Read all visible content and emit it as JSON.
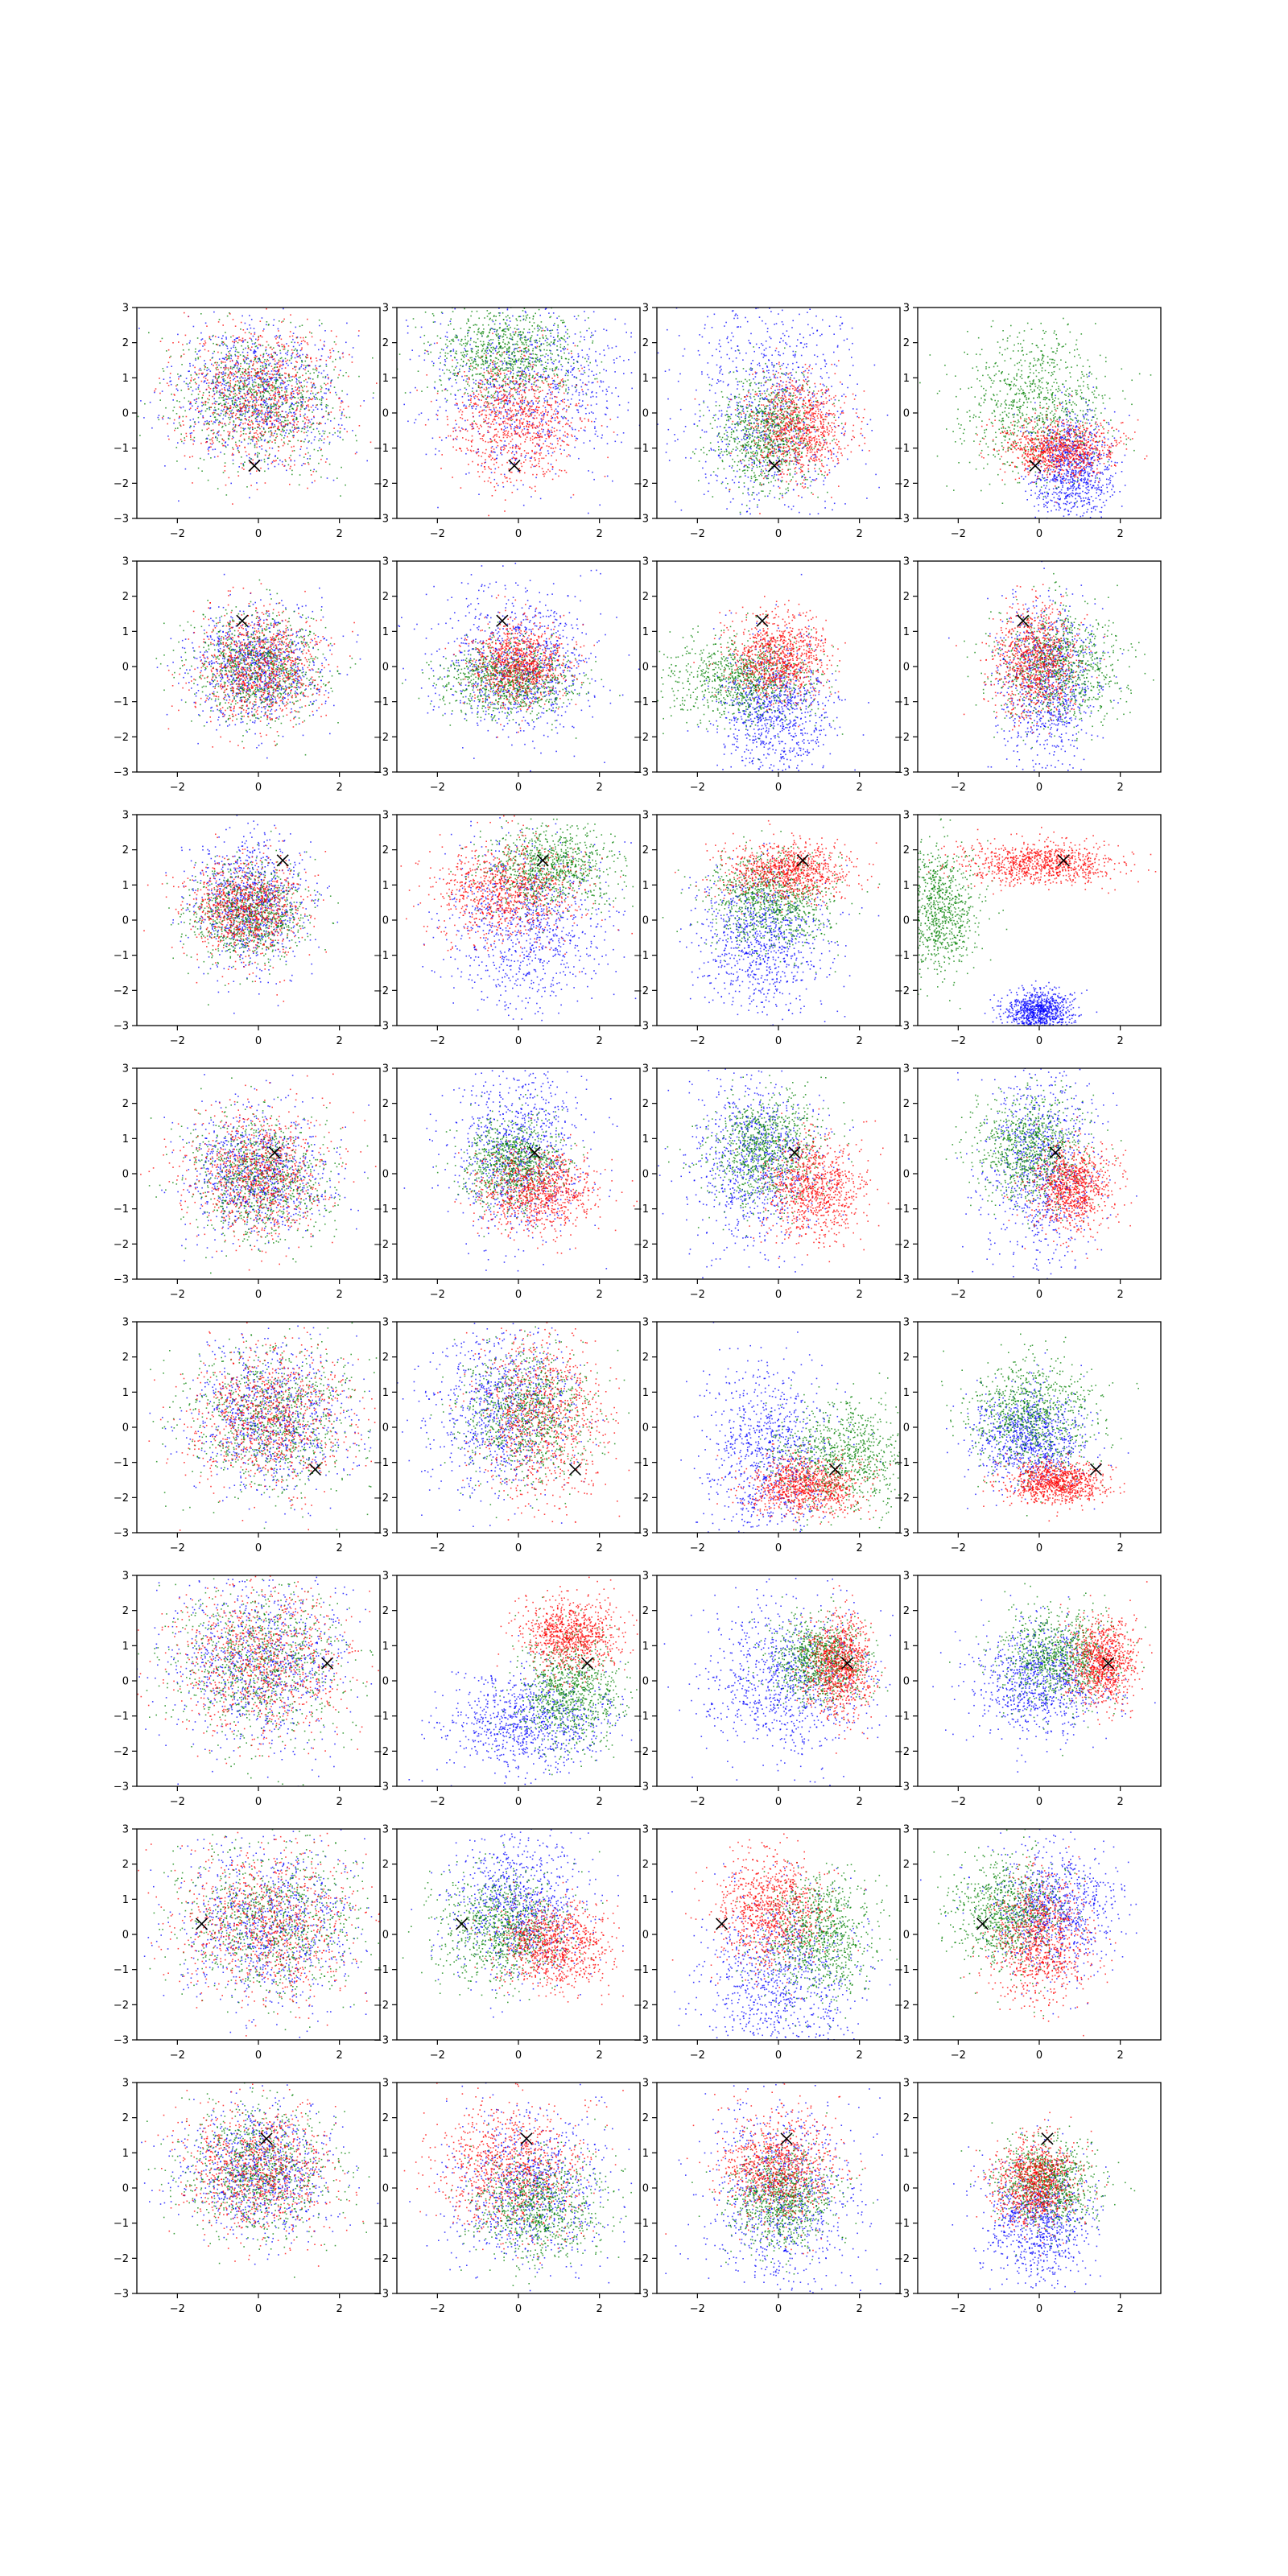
{
  "chart_data": {
    "type": "scatter",
    "layout": {
      "rows": 8,
      "cols": 4
    },
    "grid": false,
    "axes": {
      "xlim": [
        -3,
        3
      ],
      "ylim": [
        -3,
        3
      ],
      "xticks": [
        -2,
        0,
        2
      ],
      "yticks": [
        -3,
        -2,
        -1,
        0,
        1,
        2,
        3
      ],
      "xtick_labels": [
        "−2",
        "0",
        "2"
      ],
      "ytick_labels": [
        "−3",
        "−2",
        "−1",
        "0",
        "1",
        "2",
        "3"
      ]
    },
    "series_colors": [
      "#0000ff",
      "#008000",
      "#ff0000"
    ],
    "marker": {
      "symbol": "x",
      "color": "#000000"
    },
    "rows": [
      {
        "marker": [
          -0.1,
          -1.5
        ],
        "panels": [
          [
            {
              "cx": 0.0,
              "cy": 0.5,
              "sx": 1.0,
              "sy": 1.0
            },
            {
              "cx": 0.0,
              "cy": 0.5,
              "sx": 1.0,
              "sy": 1.0
            },
            {
              "cx": 0.0,
              "cy": 0.5,
              "sx": 1.0,
              "sy": 1.0
            }
          ],
          [
            {
              "cx": 0.3,
              "cy": 0.8,
              "sx": 1.3,
              "sy": 1.3
            },
            {
              "cx": -0.3,
              "cy": 1.7,
              "sx": 0.9,
              "sy": 0.7
            },
            {
              "cx": -0.1,
              "cy": -0.2,
              "sx": 0.8,
              "sy": 0.9
            }
          ],
          [
            {
              "cx": -0.3,
              "cy": 0.2,
              "sx": 1.1,
              "sy": 1.7
            },
            {
              "cx": -0.3,
              "cy": -0.6,
              "sx": 0.6,
              "sy": 0.8
            },
            {
              "cx": 0.5,
              "cy": -0.4,
              "sx": 0.6,
              "sy": 0.7
            }
          ],
          [
            {
              "cx": 0.8,
              "cy": -1.6,
              "sx": 0.5,
              "sy": 0.8
            },
            {
              "cx": -0.1,
              "cy": 0.2,
              "sx": 0.9,
              "sy": 1.0
            },
            {
              "cx": 0.5,
              "cy": -1.0,
              "sx": 0.7,
              "sy": 0.4
            }
          ]
        ]
      },
      {
        "marker": [
          -0.4,
          1.3
        ],
        "panels": [
          [
            {
              "cx": 0.0,
              "cy": 0.0,
              "sx": 0.8,
              "sy": 0.8
            },
            {
              "cx": 0.0,
              "cy": 0.0,
              "sx": 0.8,
              "sy": 0.8
            },
            {
              "cx": 0.0,
              "cy": 0.0,
              "sx": 0.8,
              "sy": 0.8
            }
          ],
          [
            {
              "cx": 0.0,
              "cy": 0.1,
              "sx": 1.0,
              "sy": 1.0
            },
            {
              "cx": -0.2,
              "cy": -0.4,
              "sx": 0.8,
              "sy": 0.5
            },
            {
              "cx": 0.0,
              "cy": 0.1,
              "sx": 0.6,
              "sy": 0.6
            }
          ],
          [
            {
              "cx": -0.1,
              "cy": -1.2,
              "sx": 0.7,
              "sy": 1.0
            },
            {
              "cx": -0.9,
              "cy": -0.4,
              "sx": 0.9,
              "sy": 0.6
            },
            {
              "cx": 0.0,
              "cy": 0.3,
              "sx": 0.6,
              "sy": 0.6
            }
          ],
          [
            {
              "cx": 0.2,
              "cy": -0.5,
              "sx": 0.6,
              "sy": 1.2
            },
            {
              "cx": 0.5,
              "cy": 0.0,
              "sx": 0.8,
              "sy": 0.8
            },
            {
              "cx": -0.1,
              "cy": 0.2,
              "sx": 0.5,
              "sy": 0.8
            }
          ]
        ]
      },
      {
        "marker": [
          0.6,
          1.7
        ],
        "panels": [
          [
            {
              "cx": -0.2,
              "cy": 0.5,
              "sx": 0.7,
              "sy": 0.9
            },
            {
              "cx": -0.3,
              "cy": 0.2,
              "sx": 0.7,
              "sy": 0.7
            },
            {
              "cx": -0.3,
              "cy": 0.3,
              "sx": 0.7,
              "sy": 0.7
            }
          ],
          [
            {
              "cx": 0.2,
              "cy": -0.2,
              "sx": 1.0,
              "sy": 1.2
            },
            {
              "cx": 0.8,
              "cy": 1.5,
              "sx": 0.8,
              "sy": 0.6
            },
            {
              "cx": -0.3,
              "cy": 0.8,
              "sx": 0.9,
              "sy": 0.7
            }
          ],
          [
            {
              "cx": -0.4,
              "cy": -0.6,
              "sx": 0.8,
              "sy": 1.0
            },
            {
              "cx": -0.2,
              "cy": 0.6,
              "sx": 0.8,
              "sy": 0.7
            },
            {
              "cx": 0.2,
              "cy": 1.4,
              "sx": 0.8,
              "sy": 0.4
            }
          ],
          [
            {
              "cx": 0.0,
              "cy": -2.6,
              "sx": 0.4,
              "sy": 0.3
            },
            {
              "cx": -2.5,
              "cy": 0.3,
              "sx": 0.5,
              "sy": 0.9
            },
            {
              "cx": 0.1,
              "cy": 1.6,
              "sx": 0.9,
              "sy": 0.3
            }
          ]
        ]
      },
      {
        "marker": [
          0.4,
          0.6
        ],
        "panels": [
          [
            {
              "cx": 0.0,
              "cy": 0.0,
              "sx": 0.9,
              "sy": 0.9
            },
            {
              "cx": 0.0,
              "cy": -0.1,
              "sx": 0.9,
              "sy": 0.9
            },
            {
              "cx": 0.0,
              "cy": 0.0,
              "sx": 0.9,
              "sy": 0.9
            }
          ],
          [
            {
              "cx": 0.0,
              "cy": 0.6,
              "sx": 0.8,
              "sy": 1.3
            },
            {
              "cx": -0.1,
              "cy": 0.3,
              "sx": 0.6,
              "sy": 0.6
            },
            {
              "cx": 0.5,
              "cy": -0.5,
              "sx": 0.7,
              "sy": 0.6
            }
          ],
          [
            {
              "cx": -0.5,
              "cy": 0.4,
              "sx": 0.8,
              "sy": 1.3
            },
            {
              "cx": -0.3,
              "cy": 0.7,
              "sx": 0.7,
              "sy": 0.8
            },
            {
              "cx": 0.9,
              "cy": -0.4,
              "sx": 0.6,
              "sy": 0.7
            }
          ],
          [
            {
              "cx": 0.0,
              "cy": 0.2,
              "sx": 0.7,
              "sy": 1.4
            },
            {
              "cx": -0.2,
              "cy": 0.7,
              "sx": 0.7,
              "sy": 0.8
            },
            {
              "cx": 0.8,
              "cy": -0.4,
              "sx": 0.5,
              "sy": 0.6
            }
          ]
        ]
      },
      {
        "marker": [
          1.4,
          -1.2
        ],
        "panels": [
          [
            {
              "cx": 0.3,
              "cy": 0.3,
              "sx": 1.0,
              "sy": 1.0
            },
            {
              "cx": 0.3,
              "cy": 0.3,
              "sx": 1.0,
              "sy": 1.0
            },
            {
              "cx": 0.3,
              "cy": 0.3,
              "sx": 1.0,
              "sy": 1.0
            }
          ],
          [
            {
              "cx": -0.4,
              "cy": 0.5,
              "sx": 0.9,
              "sy": 1.2
            },
            {
              "cx": 0.2,
              "cy": 0.3,
              "sx": 0.8,
              "sy": 0.9
            },
            {
              "cx": 0.6,
              "cy": 0.3,
              "sx": 0.8,
              "sy": 1.2
            }
          ],
          [
            {
              "cx": -0.2,
              "cy": -0.8,
              "sx": 0.8,
              "sy": 1.3
            },
            {
              "cx": 1.6,
              "cy": -0.8,
              "sx": 0.8,
              "sy": 0.8
            },
            {
              "cx": 0.6,
              "cy": -1.7,
              "sx": 0.7,
              "sy": 0.4
            }
          ],
          [
            {
              "cx": -0.2,
              "cy": -0.3,
              "sx": 0.7,
              "sy": 0.7
            },
            {
              "cx": -0.2,
              "cy": 0.3,
              "sx": 0.8,
              "sy": 0.8
            },
            {
              "cx": 0.4,
              "cy": -1.6,
              "sx": 0.6,
              "sy": 0.3
            }
          ]
        ]
      },
      {
        "marker": [
          1.7,
          0.5
        ],
        "panels": [
          [
            {
              "cx": 0.0,
              "cy": 0.5,
              "sx": 1.1,
              "sy": 1.1
            },
            {
              "cx": 0.0,
              "cy": 0.5,
              "sx": 1.1,
              "sy": 1.1
            },
            {
              "cx": 0.0,
              "cy": 0.5,
              "sx": 1.1,
              "sy": 1.1
            }
          ],
          [
            {
              "cx": 0.3,
              "cy": -1.2,
              "sx": 1.0,
              "sy": 0.7
            },
            {
              "cx": 1.3,
              "cy": -0.3,
              "sx": 0.6,
              "sy": 0.8
            },
            {
              "cx": 1.3,
              "cy": 1.3,
              "sx": 0.6,
              "sy": 0.5
            }
          ],
          [
            {
              "cx": 0.2,
              "cy": 0.0,
              "sx": 1.0,
              "sy": 1.1
            },
            {
              "cx": 1.0,
              "cy": 0.6,
              "sx": 0.6,
              "sy": 0.6
            },
            {
              "cx": 1.5,
              "cy": 0.4,
              "sx": 0.4,
              "sy": 0.7
            }
          ],
          [
            {
              "cx": 0.0,
              "cy": 0.0,
              "sx": 0.8,
              "sy": 0.8
            },
            {
              "cx": 0.5,
              "cy": 0.7,
              "sx": 0.7,
              "sy": 0.7
            },
            {
              "cx": 1.6,
              "cy": 0.5,
              "sx": 0.4,
              "sy": 0.6
            }
          ]
        ]
      },
      {
        "marker": [
          -1.4,
          0.3
        ],
        "panels": [
          [
            {
              "cx": 0.3,
              "cy": 0.3,
              "sx": 1.1,
              "sy": 1.1
            },
            {
              "cx": 0.3,
              "cy": 0.3,
              "sx": 1.1,
              "sy": 1.1
            },
            {
              "cx": 0.3,
              "cy": 0.3,
              "sx": 1.1,
              "sy": 1.1
            }
          ],
          [
            {
              "cx": 0.0,
              "cy": 0.8,
              "sx": 0.8,
              "sy": 1.0
            },
            {
              "cx": -0.4,
              "cy": 0.2,
              "sx": 0.8,
              "sy": 0.8
            },
            {
              "cx": 0.9,
              "cy": -0.3,
              "sx": 0.7,
              "sy": 0.6
            }
          ],
          [
            {
              "cx": 0.1,
              "cy": -1.3,
              "sx": 1.0,
              "sy": 1.2
            },
            {
              "cx": 1.0,
              "cy": 0.0,
              "sx": 0.7,
              "sy": 0.9
            },
            {
              "cx": -0.2,
              "cy": 0.7,
              "sx": 0.7,
              "sy": 0.8
            }
          ],
          [
            {
              "cx": 0.4,
              "cy": 0.7,
              "sx": 0.8,
              "sy": 0.9
            },
            {
              "cx": -0.8,
              "cy": 0.6,
              "sx": 0.7,
              "sy": 0.8
            },
            {
              "cx": 0.0,
              "cy": -0.2,
              "sx": 0.6,
              "sy": 0.9
            }
          ]
        ]
      },
      {
        "marker": [
          0.2,
          1.4
        ],
        "panels": [
          [
            {
              "cx": 0.0,
              "cy": 0.5,
              "sx": 0.9,
              "sy": 0.9
            },
            {
              "cx": 0.0,
              "cy": 0.5,
              "sx": 0.9,
              "sy": 0.9
            },
            {
              "cx": 0.0,
              "cy": 0.5,
              "sx": 0.9,
              "sy": 0.9
            }
          ],
          [
            {
              "cx": 0.3,
              "cy": 0.0,
              "sx": 1.0,
              "sy": 1.1
            },
            {
              "cx": 0.5,
              "cy": -0.5,
              "sx": 0.8,
              "sy": 0.8
            },
            {
              "cx": -0.2,
              "cy": 0.6,
              "sx": 0.9,
              "sy": 0.9
            }
          ],
          [
            {
              "cx": 0.1,
              "cy": -0.3,
              "sx": 0.9,
              "sy": 1.4
            },
            {
              "cx": 0.1,
              "cy": -0.3,
              "sx": 0.6,
              "sy": 0.7
            },
            {
              "cx": 0.0,
              "cy": 0.6,
              "sx": 0.7,
              "sy": 0.8
            }
          ],
          [
            {
              "cx": 0.0,
              "cy": -0.9,
              "sx": 0.7,
              "sy": 0.9
            },
            {
              "cx": 0.2,
              "cy": 0.1,
              "sx": 0.6,
              "sy": 0.6
            },
            {
              "cx": -0.1,
              "cy": 0.2,
              "sx": 0.5,
              "sy": 0.6
            }
          ]
        ]
      }
    ]
  }
}
